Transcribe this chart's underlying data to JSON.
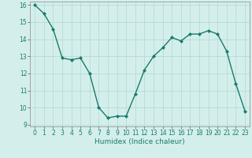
{
  "x": [
    0,
    1,
    2,
    3,
    4,
    5,
    6,
    7,
    8,
    9,
    10,
    11,
    12,
    13,
    14,
    15,
    16,
    17,
    18,
    19,
    20,
    21,
    22,
    23
  ],
  "y": [
    16.0,
    15.5,
    14.6,
    12.9,
    12.8,
    12.9,
    12.0,
    10.0,
    9.4,
    9.5,
    9.5,
    10.8,
    12.2,
    13.0,
    13.5,
    14.1,
    13.9,
    14.3,
    14.3,
    14.5,
    14.3,
    13.3,
    11.4,
    9.8
  ],
  "line_color": "#1a7a6e",
  "marker": "D",
  "marker_size": 2,
  "line_width": 1.0,
  "bg_color": "#d4efeb",
  "grid_color": "#b0d8d0",
  "xlabel": "Humidex (Indice chaleur)",
  "ylim": [
    8.9,
    16.2
  ],
  "xlim": [
    -0.5,
    23.5
  ],
  "yticks": [
    9,
    10,
    11,
    12,
    13,
    14,
    15,
    16
  ],
  "xticks": [
    0,
    1,
    2,
    3,
    4,
    5,
    6,
    7,
    8,
    9,
    10,
    11,
    12,
    13,
    14,
    15,
    16,
    17,
    18,
    19,
    20,
    21,
    22,
    23
  ],
  "tick_fontsize": 5.5,
  "xlabel_fontsize": 6.5
}
